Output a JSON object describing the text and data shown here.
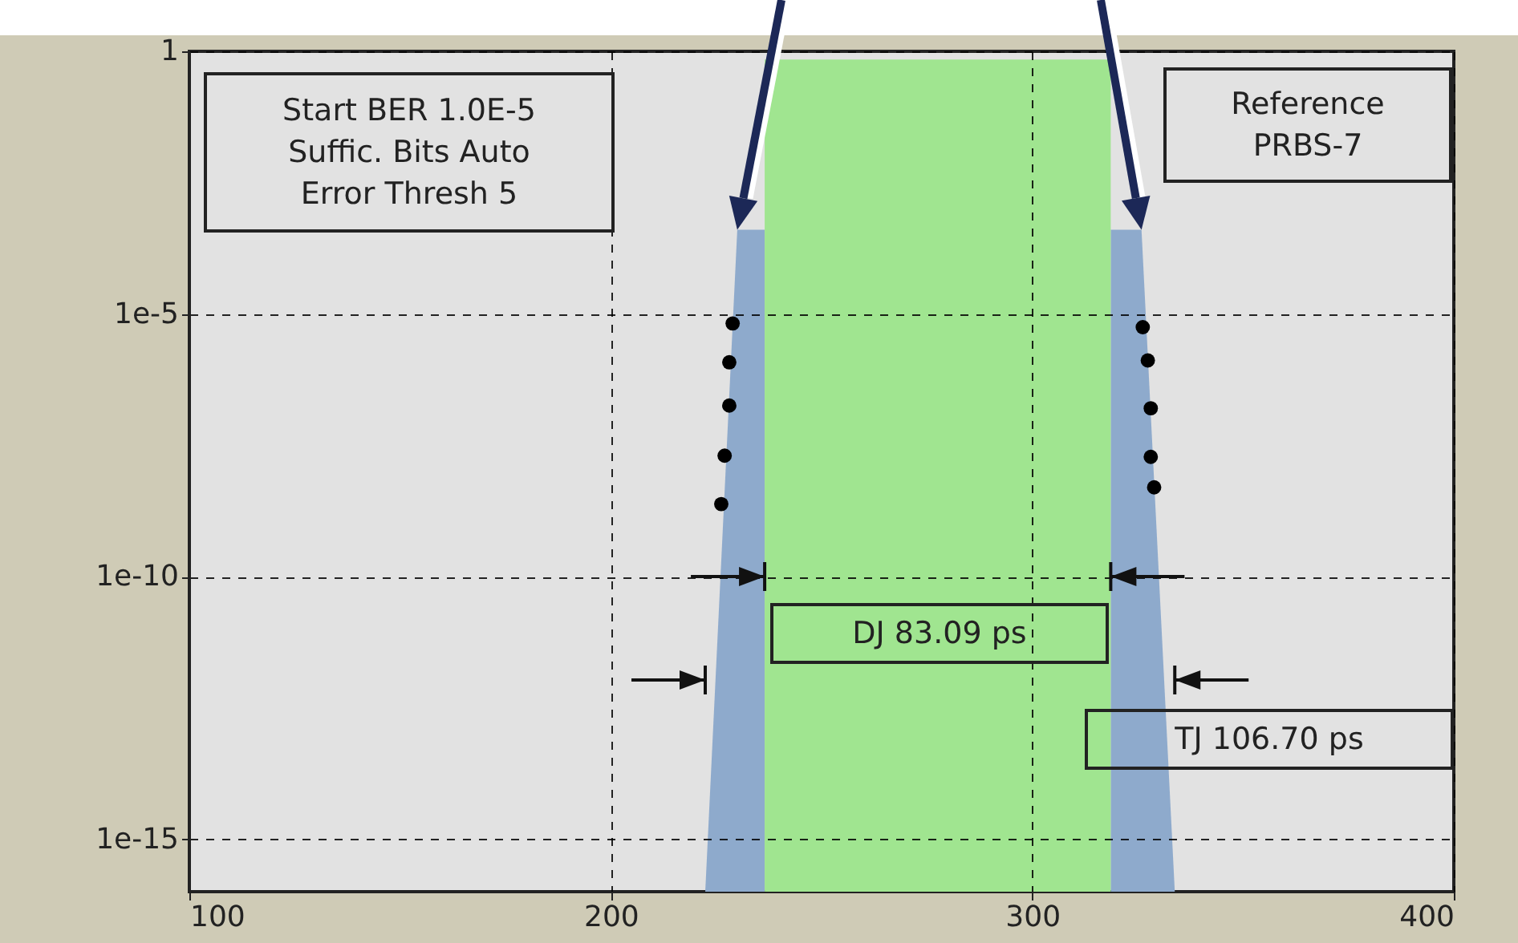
{
  "chart_data": {
    "type": "area",
    "xlim": [
      100,
      400
    ],
    "xticks": [
      100,
      200,
      300,
      400
    ],
    "ylim": [
      1e-16,
      1
    ],
    "yticks": [
      1,
      {
        "value": 1e-05,
        "label": "1e-5"
      },
      {
        "value": 1e-10,
        "label": "1e-10"
      },
      {
        "value": 1e-15,
        "label": "1e-15"
      }
    ],
    "log": "y",
    "grid": true,
    "series": [
      {
        "color": "#8eaacc",
        "x": [
          222.4,
          230,
          236.5
        ],
        "values": [
          1e-16,
          0.0004,
          0.0004
        ]
      },
      {
        "color": "#8eaacc",
        "x": [
          318.6,
          325.9,
          333.8
        ],
        "values": [
          0.0004,
          0.0004,
          1e-16
        ]
      },
      {
        "color": "#a0e590",
        "x": [
          236.5,
          318.6
        ],
        "values": [
          0.7,
          0.7
        ]
      },
      {
        "type": "scatter",
        "marker": "circle",
        "color": "#000000",
        "x": [
          228.9,
          228.1,
          228.1,
          227.0,
          226.2,
          326.2,
          327.4,
          328.1,
          328.1,
          328.9
        ],
        "values": [
          6.6e-06,
          1.2e-06,
          1.8e-07,
          2e-08,
          2.4e-09,
          5.6e-06,
          1.3e-06,
          1.6e-07,
          1.9e-08,
          5e-09
        ]
      }
    ],
    "annotations": [
      "Start BER 1.0E-5\nSuffic. Bits Auto\nError Thresh 5",
      "Reference\nPRBS-7",
      "DJ 83.09 ps",
      "TJ 106.70 ps"
    ]
  }
}
